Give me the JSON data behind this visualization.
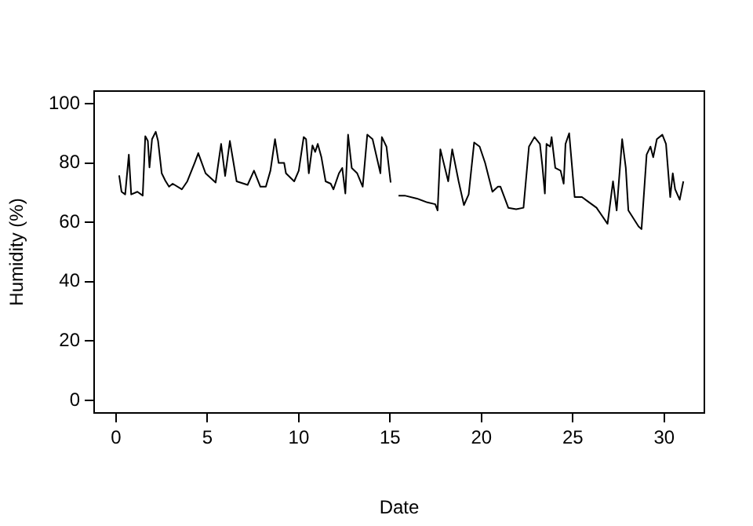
{
  "chart_data": {
    "type": "line",
    "xlabel": "Date",
    "ylabel": "Humidity (%)",
    "xlim": [
      -1.2,
      32.2
    ],
    "ylim": [
      -4.2,
      104.2
    ],
    "xticks": [
      0,
      5,
      10,
      15,
      20,
      25,
      30
    ],
    "yticks": [
      0,
      20,
      40,
      60,
      80,
      100
    ],
    "grid": false,
    "legend": false,
    "marker": "none",
    "line_style": "solid",
    "series": [
      {
        "color": "#000000",
        "x": [
          0.17,
          0.3,
          0.5,
          0.7,
          0.83,
          1.17,
          1.46,
          1.6,
          1.74,
          1.83,
          1.97,
          2.17,
          2.3,
          2.5,
          2.7,
          2.9,
          3.1,
          3.6,
          3.9,
          4.3,
          4.5,
          4.9,
          5.45,
          5.75,
          5.97,
          6.23,
          6.6,
          7.2,
          7.55,
          7.9,
          8.2,
          8.45,
          8.7,
          8.9,
          9.2,
          9.3,
          9.75,
          10.0,
          10.27,
          10.4,
          10.55,
          10.75,
          10.9,
          11.04,
          11.24,
          11.47,
          11.75,
          11.9,
          12.2,
          12.38,
          12.55,
          12.7,
          12.9,
          13.2,
          13.5,
          13.75,
          14.04,
          14.47,
          14.55,
          14.8,
          15.03,
          15.25,
          15.46,
          15.8,
          16.47,
          17.04,
          17.47,
          17.6,
          17.75,
          18.18,
          18.4,
          18.75,
          19.04,
          19.3,
          19.6,
          19.9,
          20.2,
          20.6,
          20.9,
          21.04,
          21.47,
          21.9,
          22.3,
          22.6,
          22.9,
          23.2,
          23.33,
          23.47,
          23.56,
          23.76,
          23.84,
          24.04,
          24.33,
          24.5,
          24.6,
          24.8,
          25.1,
          25.5,
          25.9,
          26.3,
          26.9,
          27.2,
          27.4,
          27.7,
          27.9,
          28.04,
          28.6,
          28.76,
          29.04,
          29.25,
          29.4,
          29.6,
          29.9,
          30.1,
          30.33,
          30.47,
          30.6,
          30.85,
          31.05
        ],
        "values": [
          75.8,
          70.3,
          69.4,
          82.8,
          69.4,
          70.3,
          69,
          89,
          87.4,
          78.5,
          88,
          90.5,
          87.4,
          76.5,
          74,
          72,
          73,
          71.1,
          73.8,
          80,
          83.3,
          76.5,
          73.4,
          86.4,
          75.6,
          87.4,
          73.8,
          72.6,
          77.4,
          72,
          72,
          77.4,
          88,
          80,
          80,
          76.5,
          73.8,
          77.4,
          88.7,
          88,
          76.5,
          85.9,
          83.7,
          86.4,
          81.9,
          73.8,
          73,
          71.1,
          76.5,
          78.3,
          69.7,
          89.5,
          78.3,
          76.5,
          72,
          89.5,
          88,
          76.5,
          88.7,
          85.5,
          73.4,
          null,
          69,
          69,
          68,
          66.7,
          66.1,
          64,
          84.6,
          73.8,
          84.6,
          73.8,
          65.8,
          69.4,
          86.9,
          85.5,
          80,
          70.3,
          72,
          72,
          64.9,
          64.4,
          64.9,
          85.5,
          88.7,
          86.4,
          79.2,
          69.7,
          86.4,
          85.5,
          88.7,
          78.3,
          77.4,
          73,
          86.4,
          90,
          68.5,
          68.5,
          66.7,
          64.9,
          59.5,
          73.8,
          64,
          88,
          78.3,
          64,
          58.6,
          57.7,
          82.8,
          85.5,
          81.9,
          88,
          89.5,
          86.4,
          68.5,
          76.5,
          71.1,
          67.6,
          73.8
        ]
      }
    ]
  }
}
